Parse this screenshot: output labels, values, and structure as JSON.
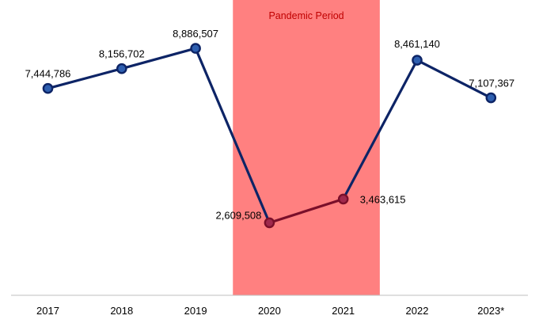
{
  "chart_data": {
    "type": "line",
    "categories": [
      "2017",
      "2018",
      "2019",
      "2020",
      "2021",
      "2022",
      "2023*"
    ],
    "values": [
      7444786,
      8156702,
      8886507,
      2609508,
      3463615,
      8461140,
      7107367
    ],
    "data_labels": [
      "7,444,786",
      "8,156,702",
      "8,886,507",
      "2,609,508",
      "3,463,615",
      "8,461,140",
      "7,107,367"
    ],
    "ylim": [
      0,
      10300000
    ],
    "grid": false,
    "highlight": {
      "label": "Pandemic Period",
      "from": "2020",
      "to": "2021"
    }
  },
  "colors": {
    "line": "#0d2466",
    "marker_fill": "#2e5fb0",
    "pandemic_line": "#7a0f2a",
    "pandemic_marker_fill": "#a0294d",
    "band_fill": "#ff8080",
    "band_text": "#c00000",
    "axis": "#bfbfbf"
  }
}
